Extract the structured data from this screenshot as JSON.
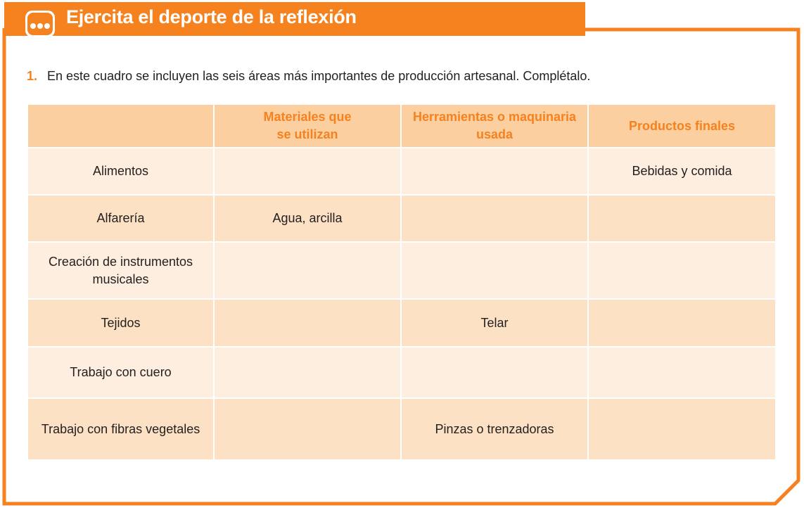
{
  "header": {
    "title": "Ejercita el deporte de la reflexión",
    "icon": "ellipsis-icon"
  },
  "instruction": {
    "number": "1.",
    "text": "En este cuadro se incluyen las seis áreas más importantes de producción artesanal. Complétalo."
  },
  "table": {
    "headers": [
      "",
      "Materiales que se utilizan",
      "Herramientas o maquinaria usada",
      "Productos finales"
    ],
    "rows": [
      [
        "Alimentos",
        "",
        "",
        "Bebidas y comida"
      ],
      [
        "Alfarería",
        "Agua, arcilla",
        "",
        ""
      ],
      [
        "Creación de instrumentos musicales",
        "",
        "",
        ""
      ],
      [
        "Tejidos",
        "",
        "Telar",
        ""
      ],
      [
        "Trabajo con cuero",
        "",
        "",
        ""
      ],
      [
        "Trabajo con fibras vegetales",
        "",
        "Pinzas o trenzadoras",
        ""
      ]
    ]
  },
  "colors": {
    "accent": "#f5821f",
    "header_cell": "#fbcf9f",
    "row_light": "#fdeee0",
    "row_dark": "#fce1c4"
  }
}
